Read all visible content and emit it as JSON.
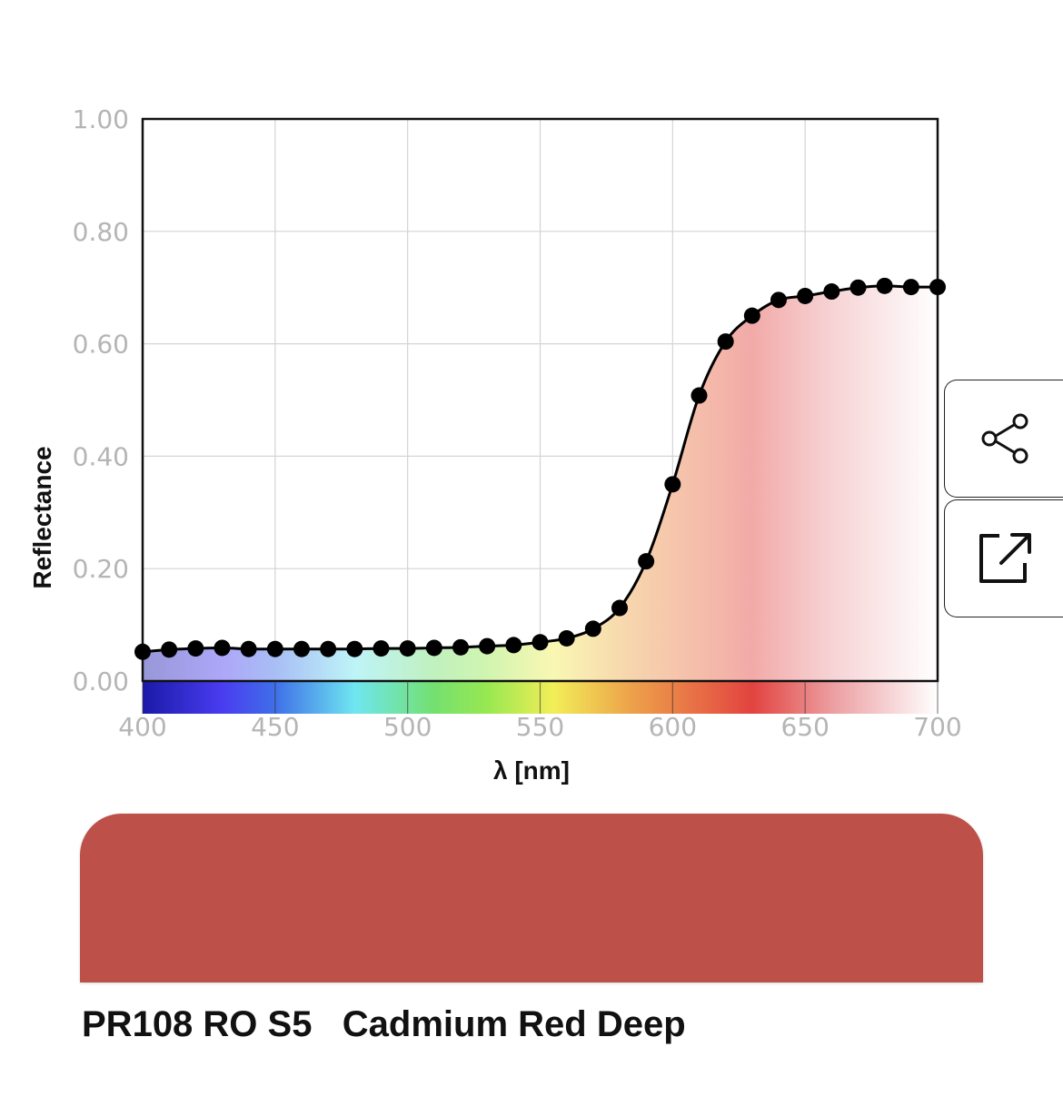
{
  "chart_data": {
    "type": "line",
    "xlabel": "λ [nm]",
    "ylabel": "Reflectance",
    "xlim": [
      400,
      700
    ],
    "ylim": [
      0,
      1
    ],
    "x_ticks": [
      "400",
      "450",
      "500",
      "550",
      "600",
      "650",
      "700"
    ],
    "y_ticks": [
      "0.00",
      "0.20",
      "0.40",
      "0.60",
      "0.80",
      "1.00"
    ],
    "grid": true,
    "series": [
      {
        "x": [
          400,
          410,
          420,
          430,
          440,
          450,
          460,
          470,
          480,
          490,
          500,
          510,
          520,
          530,
          540,
          550,
          560,
          570,
          580,
          590,
          600,
          610,
          620,
          630,
          640,
          650,
          660,
          670,
          680,
          690,
          700
        ],
        "values": [
          0.052,
          0.056,
          0.058,
          0.059,
          0.057,
          0.057,
          0.057,
          0.057,
          0.057,
          0.058,
          0.058,
          0.059,
          0.06,
          0.062,
          0.064,
          0.069,
          0.076,
          0.093,
          0.13,
          0.213,
          0.35,
          0.508,
          0.604,
          0.65,
          0.678,
          0.685,
          0.693,
          0.7,
          0.703,
          0.701,
          0.701
        ]
      }
    ],
    "fill": "visible-spectrum gradient under curve",
    "spectrum_colors": {
      "400": "#1a1aa8",
      "430": "#4a3cf0",
      "450": "#3f6fe8",
      "480": "#6fe6f0",
      "510": "#74e070",
      "530": "#98e851",
      "555": "#f2ee58",
      "585": "#eda04a",
      "610": "#e86d45",
      "630": "#e2433f",
      "660": "#ec9da0",
      "700": "#ffffff"
    }
  },
  "actions": {
    "share_icon": "share-icon",
    "open_icon": "external-link-icon"
  },
  "swatch": {
    "color": "#bd5049"
  },
  "pigment": {
    "info": "PR108 RO S5   Cadmium Red Deep"
  }
}
